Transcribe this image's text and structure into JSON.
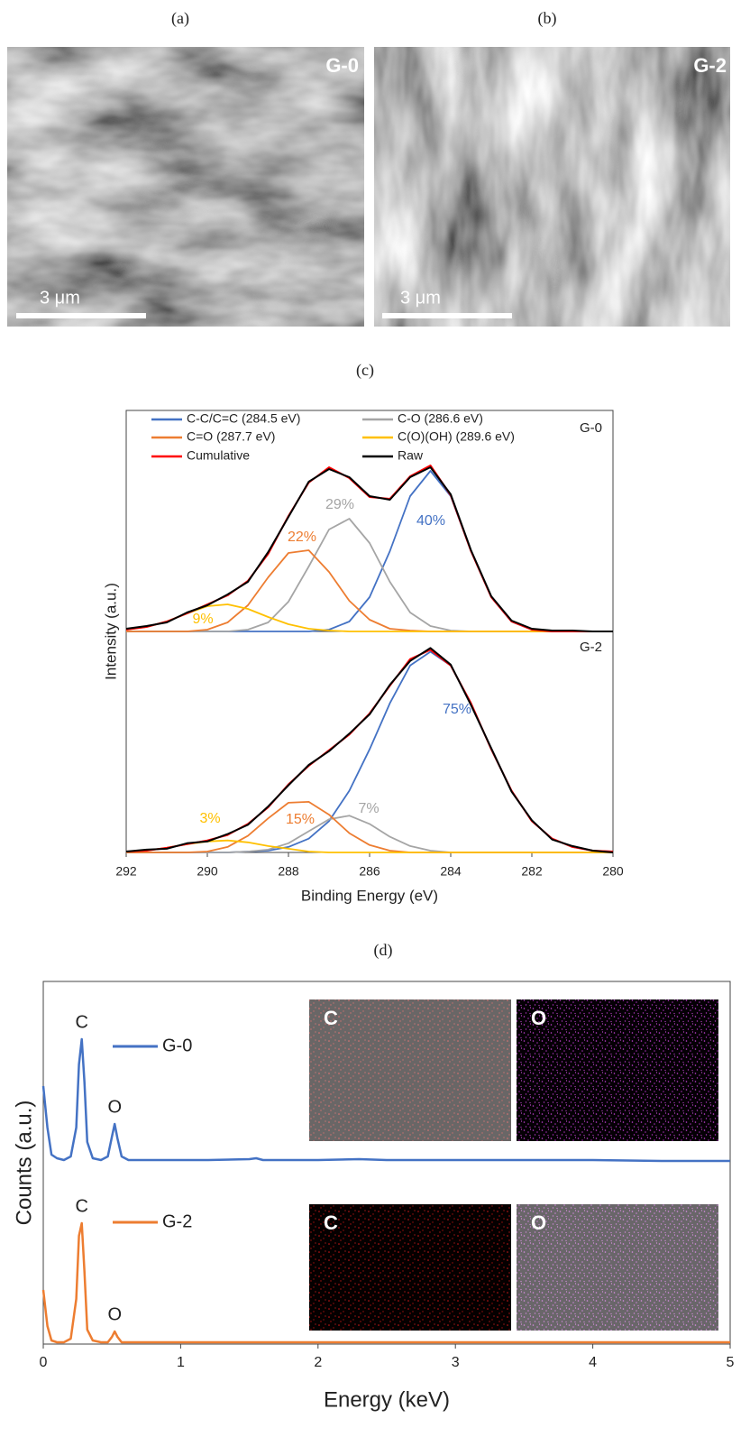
{
  "figure": {
    "panel_labels": [
      "(a)",
      "(b)",
      "(c)",
      "(d)"
    ]
  },
  "images": [
    {
      "label": "G-0",
      "scale_bar": "3 μm"
    },
    {
      "label": "G-2",
      "scale_bar": "3 μm"
    }
  ],
  "chart_data": [
    {
      "type": "line",
      "xlabel": "Binding Energy (eV)",
      "ylabel": "Intensity (a.u.)",
      "xlim": [
        292,
        280
      ],
      "xticks": [
        292,
        290,
        288,
        286,
        284,
        282,
        280
      ],
      "x": [
        292,
        291.5,
        291,
        290.5,
        290,
        289.5,
        289,
        288.5,
        288,
        287.5,
        287,
        286.5,
        286,
        285.5,
        285,
        284.5,
        284,
        283.5,
        283,
        282.5,
        282,
        281.5,
        281,
        280.5,
        280
      ],
      "series": [
        {
          "name": "C-C/C=C (284.5 eV)",
          "color": "#4472c4"
        },
        {
          "name": "C-O (286.6 eV)",
          "color": "#a5a5a5"
        },
        {
          "name": "C=O (287.7 eV)",
          "color": "#ed7d31"
        },
        {
          "name": "C(O)(OH) (289.6 eV)",
          "color": "#ffc000"
        },
        {
          "name": "Cumulative",
          "color": "#ff0000"
        },
        {
          "name": "Raw",
          "color": "#000000"
        }
      ],
      "panels": [
        {
          "name": "G-0",
          "ylim": [
            0,
            240
          ],
          "values": [
            [
              0,
              0,
              0,
              0,
              0,
              0,
              0,
              0,
              0,
              0,
              2,
              11,
              38,
              89,
              150,
              178,
              150,
              89,
              38,
              11,
              2,
              0,
              0,
              0,
              0
            ],
            [
              0,
              0,
              0,
              0,
              0,
              0,
              2,
              10,
              33,
              72,
              113,
              125,
              98,
              55,
              21,
              6,
              1,
              0,
              0,
              0,
              0,
              0,
              0,
              0,
              0
            ],
            [
              0,
              0,
              0,
              0,
              2,
              10,
              29,
              60,
              87,
              90,
              66,
              34,
              13,
              3,
              1,
              0,
              0,
              0,
              0,
              0,
              0,
              0,
              0,
              0,
              0
            ],
            [
              2,
              5,
              11,
              20,
              28,
              30,
              25,
              16,
              8,
              3,
              1,
              0,
              0,
              0,
              0,
              0,
              0,
              0,
              0,
              0,
              0,
              0,
              0,
              0,
              0
            ],
            [
              2,
              5,
              11,
              20,
              30,
              40,
              56,
              86,
              128,
              165,
              182,
              170,
              149,
              147,
              172,
              184,
              151,
              89,
              38,
              11,
              2,
              0,
              0,
              0,
              0
            ],
            [
              3,
              6,
              10,
              21,
              29,
              41,
              55,
              88,
              127,
              166,
              180,
              171,
              150,
              146,
              171,
              182,
              152,
              90,
              39,
              12,
              3,
              1,
              1,
              0,
              0
            ]
          ],
          "shares": [
            40,
            29,
            22,
            9
          ],
          "share_labels": [
            "40%",
            "29%",
            "22%",
            "9%"
          ]
        },
        {
          "name": "G-2",
          "ylim": [
            0,
            240
          ],
          "values": [
            [
              0,
              0,
              0,
              0,
              0,
              0,
              1,
              2,
              6,
              15,
              34,
              67,
              112,
              162,
              203,
              218,
              203,
              162,
              112,
              67,
              34,
              15,
              6,
              2,
              1
            ],
            [
              0,
              0,
              0,
              0,
              0,
              0,
              1,
              3,
              10,
              23,
              36,
              40,
              31,
              17,
              7,
              2,
              0,
              0,
              0,
              0,
              0,
              0,
              0,
              0,
              0
            ],
            [
              0,
              0,
              0,
              0,
              1,
              6,
              18,
              37,
              54,
              55,
              41,
              21,
              8,
              2,
              0,
              0,
              0,
              0,
              0,
              0,
              0,
              0,
              0,
              0,
              0
            ],
            [
              1,
              2,
              5,
              9,
              12,
              13,
              11,
              7,
              4,
              1,
              0,
              0,
              0,
              0,
              0,
              0,
              0,
              0,
              0,
              0,
              0,
              0,
              0,
              0,
              0
            ],
            [
              1,
              2,
              5,
              9,
              13,
              19,
              31,
              49,
              74,
              94,
              111,
              128,
              151,
              181,
              210,
              220,
              203,
              162,
              112,
              67,
              34,
              15,
              6,
              2,
              1
            ],
            [
              1,
              3,
              4,
              10,
              12,
              20,
              30,
              50,
              73,
              95,
              110,
              129,
              150,
              182,
              208,
              222,
              204,
              160,
              113,
              66,
              35,
              14,
              7,
              2,
              0
            ]
          ],
          "shares": [
            75,
            7,
            15,
            3
          ],
          "share_labels": [
            "75%",
            "7%",
            "15%",
            "3%"
          ]
        }
      ]
    },
    {
      "type": "line",
      "xlabel": "Energy (keV)",
      "ylabel": "Counts (a.u.)",
      "xlim": [
        0,
        5
      ],
      "xticks": [
        0,
        1,
        2,
        3,
        4,
        5
      ],
      "x": [
        0,
        0.03,
        0.06,
        0.1,
        0.15,
        0.2,
        0.24,
        0.26,
        0.28,
        0.3,
        0.32,
        0.36,
        0.42,
        0.47,
        0.5,
        0.52,
        0.54,
        0.57,
        0.62,
        0.7,
        0.9,
        1.2,
        1.5,
        1.55,
        1.6,
        2,
        2.3,
        2.5,
        3,
        3.5,
        4,
        4.5,
        5
      ],
      "panels": [
        {
          "name": "G-0",
          "color": "#4472c4",
          "ylim": [
            0,
            100
          ],
          "values": [
            43,
            20,
            5,
            3,
            2,
            4,
            20,
            55,
            69,
            45,
            12,
            3,
            2,
            4,
            15,
            22,
            14,
            4,
            2,
            2,
            2,
            2,
            2.5,
            3,
            2,
            2,
            2.5,
            2,
            2,
            2,
            2,
            1.5,
            1.5
          ],
          "peak_labels": [
            {
              "text": "C",
              "x": 0.28
            },
            {
              "text": "O",
              "x": 0.52
            }
          ],
          "maps": [
            "C",
            "O"
          ]
        },
        {
          "name": "G-2",
          "color": "#ed7d31",
          "ylim": [
            0,
            100
          ],
          "values": [
            30,
            10,
            2,
            1,
            1,
            3,
            25,
            60,
            67,
            40,
            8,
            2,
            1,
            1,
            4,
            7,
            4,
            1,
            1,
            1,
            1,
            1,
            1,
            1,
            1,
            1,
            1,
            1,
            1,
            1,
            1,
            1,
            1
          ],
          "peak_labels": [
            {
              "text": "C",
              "x": 0.28
            },
            {
              "text": "O",
              "x": 0.52
            }
          ],
          "maps": [
            "C",
            "O"
          ]
        }
      ]
    }
  ]
}
